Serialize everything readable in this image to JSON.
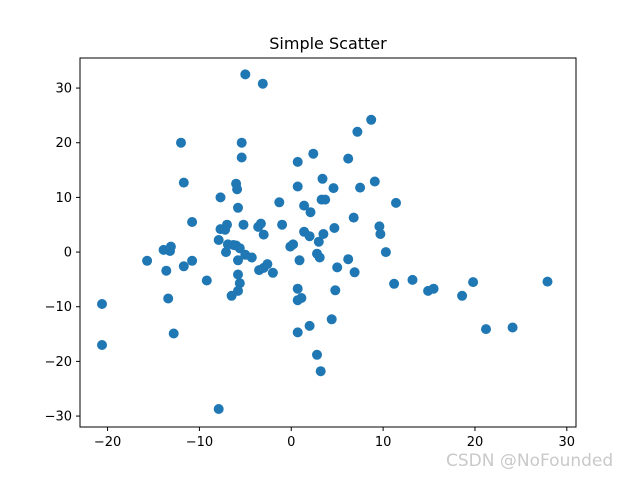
{
  "chart_data": {
    "type": "scatter",
    "title": "Simple Scatter",
    "xlabel": "",
    "ylabel": "",
    "xlim": [
      -23,
      31
    ],
    "ylim": [
      -32,
      35.5
    ],
    "x_ticks": [
      -20,
      -10,
      0,
      10,
      20,
      30
    ],
    "y_ticks": [
      -30,
      -20,
      -10,
      0,
      10,
      20,
      30
    ],
    "marker_color": "#1f77b4",
    "grid": false,
    "legend": "none",
    "points": [
      {
        "x": -20.6,
        "y": -9.5
      },
      {
        "x": -20.6,
        "y": -17.0
      },
      {
        "x": -15.7,
        "y": -1.6
      },
      {
        "x": -13.9,
        "y": 0.4
      },
      {
        "x": -13.6,
        "y": -3.4
      },
      {
        "x": -13.4,
        "y": -8.5
      },
      {
        "x": -13.2,
        "y": 0.2
      },
      {
        "x": -13.1,
        "y": 1.0
      },
      {
        "x": -12.8,
        "y": -14.9
      },
      {
        "x": -12.0,
        "y": 20.0
      },
      {
        "x": -11.7,
        "y": 12.7
      },
      {
        "x": -11.7,
        "y": -2.6
      },
      {
        "x": -10.8,
        "y": -1.6
      },
      {
        "x": -10.8,
        "y": 5.5
      },
      {
        "x": -9.2,
        "y": -5.2
      },
      {
        "x": -7.9,
        "y": -28.7
      },
      {
        "x": -7.9,
        "y": 2.2
      },
      {
        "x": -7.7,
        "y": 10.0
      },
      {
        "x": -7.7,
        "y": 4.2
      },
      {
        "x": -7.2,
        "y": 4.1
      },
      {
        "x": -7.1,
        "y": 0.0
      },
      {
        "x": -7.0,
        "y": 5.0
      },
      {
        "x": -6.9,
        "y": 1.4
      },
      {
        "x": -6.5,
        "y": -8.0
      },
      {
        "x": -6.3,
        "y": 1.3
      },
      {
        "x": -6.0,
        "y": 12.5
      },
      {
        "x": -6.0,
        "y": 1.2
      },
      {
        "x": -5.9,
        "y": 11.5
      },
      {
        "x": -5.8,
        "y": 8.1
      },
      {
        "x": -5.8,
        "y": -1.5
      },
      {
        "x": -5.8,
        "y": -4.1
      },
      {
        "x": -5.8,
        "y": -7.1
      },
      {
        "x": -5.6,
        "y": -5.7
      },
      {
        "x": -5.6,
        "y": 0.7
      },
      {
        "x": -5.4,
        "y": 20.0
      },
      {
        "x": -5.4,
        "y": 17.3
      },
      {
        "x": -5.2,
        "y": 5.0
      },
      {
        "x": -5.0,
        "y": 32.5
      },
      {
        "x": -5.0,
        "y": -0.5
      },
      {
        "x": -4.3,
        "y": -1.0
      },
      {
        "x": -3.6,
        "y": 4.6
      },
      {
        "x": -3.5,
        "y": -3.3
      },
      {
        "x": -3.3,
        "y": 5.2
      },
      {
        "x": -3.1,
        "y": 30.8
      },
      {
        "x": -3.0,
        "y": -2.9
      },
      {
        "x": -3.0,
        "y": 3.2
      },
      {
        "x": -2.6,
        "y": -2.2
      },
      {
        "x": -2.0,
        "y": -3.8
      },
      {
        "x": -1.3,
        "y": 9.1
      },
      {
        "x": -1.0,
        "y": 5.0
      },
      {
        "x": -0.1,
        "y": 1.0
      },
      {
        "x": 0.2,
        "y": 1.4
      },
      {
        "x": 0.7,
        "y": 16.5
      },
      {
        "x": 0.7,
        "y": 12.0
      },
      {
        "x": 0.7,
        "y": -6.7
      },
      {
        "x": 0.7,
        "y": -14.7
      },
      {
        "x": 0.7,
        "y": -8.8
      },
      {
        "x": 0.9,
        "y": -1.5
      },
      {
        "x": 1.1,
        "y": -8.4
      },
      {
        "x": 1.4,
        "y": 3.7
      },
      {
        "x": 1.4,
        "y": 8.5
      },
      {
        "x": 2.0,
        "y": -13.5
      },
      {
        "x": 2.0,
        "y": 2.9
      },
      {
        "x": 2.1,
        "y": 7.3
      },
      {
        "x": 2.4,
        "y": 18.0
      },
      {
        "x": 2.8,
        "y": -18.8
      },
      {
        "x": 2.8,
        "y": -0.3
      },
      {
        "x": 3.0,
        "y": 1.9
      },
      {
        "x": 3.1,
        "y": -1.0
      },
      {
        "x": 3.2,
        "y": -21.8
      },
      {
        "x": 3.3,
        "y": 9.6
      },
      {
        "x": 3.4,
        "y": 13.4
      },
      {
        "x": 3.5,
        "y": 3.3
      },
      {
        "x": 3.7,
        "y": 9.6
      },
      {
        "x": 4.4,
        "y": -12.3
      },
      {
        "x": 4.6,
        "y": 11.7
      },
      {
        "x": 4.7,
        "y": 4.4
      },
      {
        "x": 4.8,
        "y": -7.0
      },
      {
        "x": 5.0,
        "y": -2.8
      },
      {
        "x": 6.2,
        "y": 17.1
      },
      {
        "x": 6.2,
        "y": -1.3
      },
      {
        "x": 6.8,
        "y": 6.3
      },
      {
        "x": 6.9,
        "y": -3.7
      },
      {
        "x": 7.2,
        "y": 22.0
      },
      {
        "x": 7.5,
        "y": 11.8
      },
      {
        "x": 8.7,
        "y": 24.2
      },
      {
        "x": 9.1,
        "y": 12.9
      },
      {
        "x": 9.6,
        "y": 4.7
      },
      {
        "x": 9.7,
        "y": 3.3
      },
      {
        "x": 10.3,
        "y": 0.0
      },
      {
        "x": 11.2,
        "y": -5.8
      },
      {
        "x": 11.4,
        "y": 9.0
      },
      {
        "x": 13.2,
        "y": -5.1
      },
      {
        "x": 14.9,
        "y": -7.1
      },
      {
        "x": 15.5,
        "y": -6.7
      },
      {
        "x": 18.6,
        "y": -8.0
      },
      {
        "x": 19.8,
        "y": -5.5
      },
      {
        "x": 21.2,
        "y": -14.1
      },
      {
        "x": 24.1,
        "y": -13.8
      },
      {
        "x": 27.9,
        "y": -5.4
      }
    ]
  },
  "watermark": "CSDN @NoFounded"
}
